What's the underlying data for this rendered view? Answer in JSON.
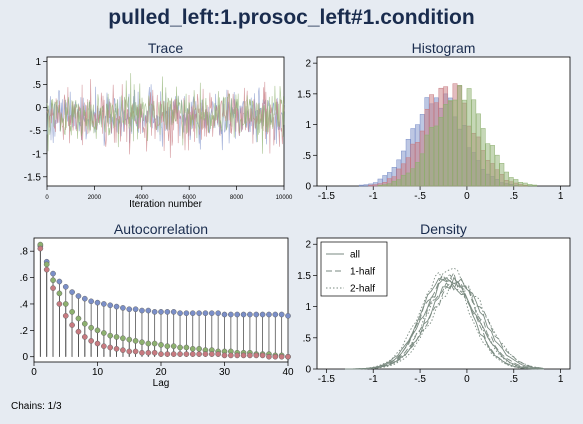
{
  "main_title": "pulled_left:1.prosoc_left#1.condition",
  "footnote": "Chains: 1/3",
  "colors": {
    "background": "#e6ebf2",
    "plot_bg": "#ffffff",
    "title": "#1a2c4e",
    "blue": "#7b8fc8",
    "red": "#c77a80",
    "green": "#8db06f"
  },
  "chart_data": [
    {
      "type": "line",
      "title": "Trace",
      "xlabel": "Iteration number",
      "xticks": [
        "0",
        "2000",
        "4000",
        "6000",
        "8000",
        "10000"
      ],
      "yticks": [
        "1",
        ".5",
        "0",
        "-.5",
        "-1",
        "-1.5"
      ],
      "xlim": [
        0,
        10000
      ],
      "ylim": [
        -1.7,
        1.1
      ],
      "series": [
        {
          "mean": -0.18,
          "sd": 0.27,
          "color": "blue"
        },
        {
          "mean": -0.2,
          "sd": 0.28,
          "color": "red"
        },
        {
          "mean": -0.15,
          "sd": 0.28,
          "color": "green"
        }
      ]
    },
    {
      "type": "bar",
      "title": "Histogram",
      "xticks": [
        "-1.5",
        "-1",
        "-.5",
        "0",
        ".5",
        "1"
      ],
      "yticks": [
        "2",
        "1.5",
        "1",
        ".5",
        "0"
      ],
      "xlim": [
        -1.6,
        1.1
      ],
      "ylim": [
        0,
        2.1
      ],
      "series": [
        {
          "color": "blue",
          "mean": -0.3,
          "peak": 1.45
        },
        {
          "color": "red",
          "mean": -0.2,
          "peak": 1.6
        },
        {
          "color": "green",
          "mean": -0.1,
          "peak": 1.55
        }
      ]
    },
    {
      "type": "scatter",
      "title": "Autocorrelation",
      "xlabel": "Lag",
      "xticks": [
        "0",
        "10",
        "20",
        "30",
        "40"
      ],
      "yticks": [
        ".8",
        ".6",
        ".4",
        ".2",
        "0"
      ],
      "xlim": [
        0,
        40
      ],
      "ylim": [
        -0.04,
        0.9
      ],
      "lags": [
        1,
        2,
        3,
        4,
        5,
        6,
        7,
        8,
        9,
        10,
        11,
        12,
        13,
        14,
        15,
        16,
        17,
        18,
        19,
        20,
        21,
        22,
        23,
        24,
        25,
        26,
        27,
        28,
        29,
        30,
        31,
        32,
        33,
        34,
        35,
        36,
        37,
        38,
        39,
        40
      ],
      "series": [
        {
          "color": "blue",
          "values": [
            0.84,
            0.72,
            0.63,
            0.57,
            0.53,
            0.49,
            0.46,
            0.44,
            0.42,
            0.41,
            0.4,
            0.39,
            0.38,
            0.37,
            0.36,
            0.36,
            0.35,
            0.35,
            0.34,
            0.34,
            0.34,
            0.34,
            0.33,
            0.33,
            0.33,
            0.33,
            0.33,
            0.33,
            0.33,
            0.32,
            0.32,
            0.32,
            0.32,
            0.32,
            0.32,
            0.32,
            0.32,
            0.32,
            0.32,
            0.31
          ]
        },
        {
          "color": "green",
          "values": [
            0.85,
            0.7,
            0.58,
            0.48,
            0.4,
            0.34,
            0.29,
            0.25,
            0.22,
            0.2,
            0.18,
            0.16,
            0.15,
            0.14,
            0.13,
            0.12,
            0.11,
            0.1,
            0.1,
            0.09,
            0.08,
            0.08,
            0.07,
            0.07,
            0.06,
            0.06,
            0.05,
            0.05,
            0.04,
            0.04,
            0.04,
            0.03,
            0.03,
            0.03,
            0.02,
            0.02,
            0.02,
            0.01,
            0.01,
            0.0
          ]
        },
        {
          "color": "red",
          "values": [
            0.82,
            0.66,
            0.52,
            0.4,
            0.31,
            0.24,
            0.19,
            0.15,
            0.12,
            0.1,
            0.08,
            0.07,
            0.06,
            0.05,
            0.04,
            0.04,
            0.03,
            0.03,
            0.03,
            0.02,
            0.02,
            0.02,
            0.02,
            0.02,
            0.02,
            0.02,
            0.02,
            0.02,
            0.02,
            0.01,
            0.01,
            0.01,
            0.01,
            0.01,
            0.01,
            0.01,
            0.0,
            0.0,
            0.0,
            0.0
          ]
        }
      ]
    },
    {
      "type": "line",
      "title": "Density",
      "xticks": [
        "-1.5",
        "-1",
        "-.5",
        "0",
        ".5",
        "1"
      ],
      "yticks": [
        "2",
        "1.5",
        "1",
        ".5",
        "0"
      ],
      "xlim": [
        -1.6,
        1.1
      ],
      "ylim": [
        0,
        2.1
      ],
      "legend_position": "top-left",
      "series": [
        {
          "name": "all",
          "style": "solid"
        },
        {
          "name": "1-half",
          "style": "dashed"
        },
        {
          "name": "2-half",
          "style": "dotted"
        }
      ]
    }
  ]
}
